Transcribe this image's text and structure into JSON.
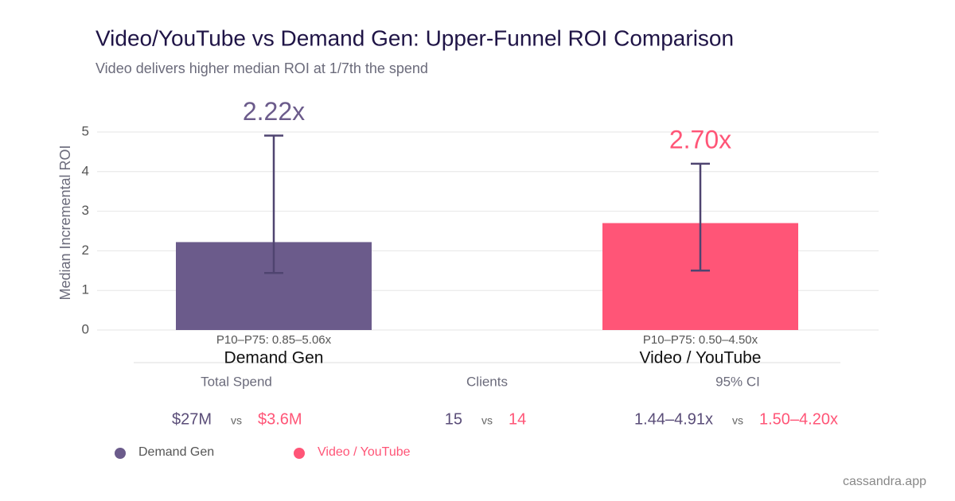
{
  "chart_data": {
    "type": "bar",
    "title": "Video/YouTube vs Demand Gen: Upper-Funnel ROI Comparison",
    "subtitle": "Video delivers higher median ROI at 1/7th the spend",
    "y_label": "Median Incremental ROI",
    "categories": [
      "Demand Gen",
      "Video / YouTube"
    ],
    "values": [
      2.22,
      2.7
    ],
    "value_labels": [
      "2.22x",
      "2.70x"
    ],
    "ci_low": [
      1.44,
      1.5
    ],
    "ci_high": [
      4.91,
      4.2
    ],
    "annotations": [
      "P10–P75: 0.85–5.06x",
      "P10–P75: 0.50–4.50x"
    ],
    "colors": [
      "#6b5b8b",
      "#ff5577"
    ],
    "ylim": [
      0,
      5
    ],
    "yticks": [
      0,
      1,
      2,
      3,
      4,
      5
    ],
    "grid": true
  },
  "stats": [
    {
      "label": "Total Spend",
      "left": "$27M",
      "vs": "vs",
      "right": "$3.6M"
    },
    {
      "label": "Clients",
      "left": "15",
      "vs": "vs",
      "right": "14"
    },
    {
      "label": "95% CI",
      "left": "1.44–4.91x",
      "vs": "vs",
      "right": "1.50–4.20x"
    }
  ],
  "footer": "cassandra.app"
}
